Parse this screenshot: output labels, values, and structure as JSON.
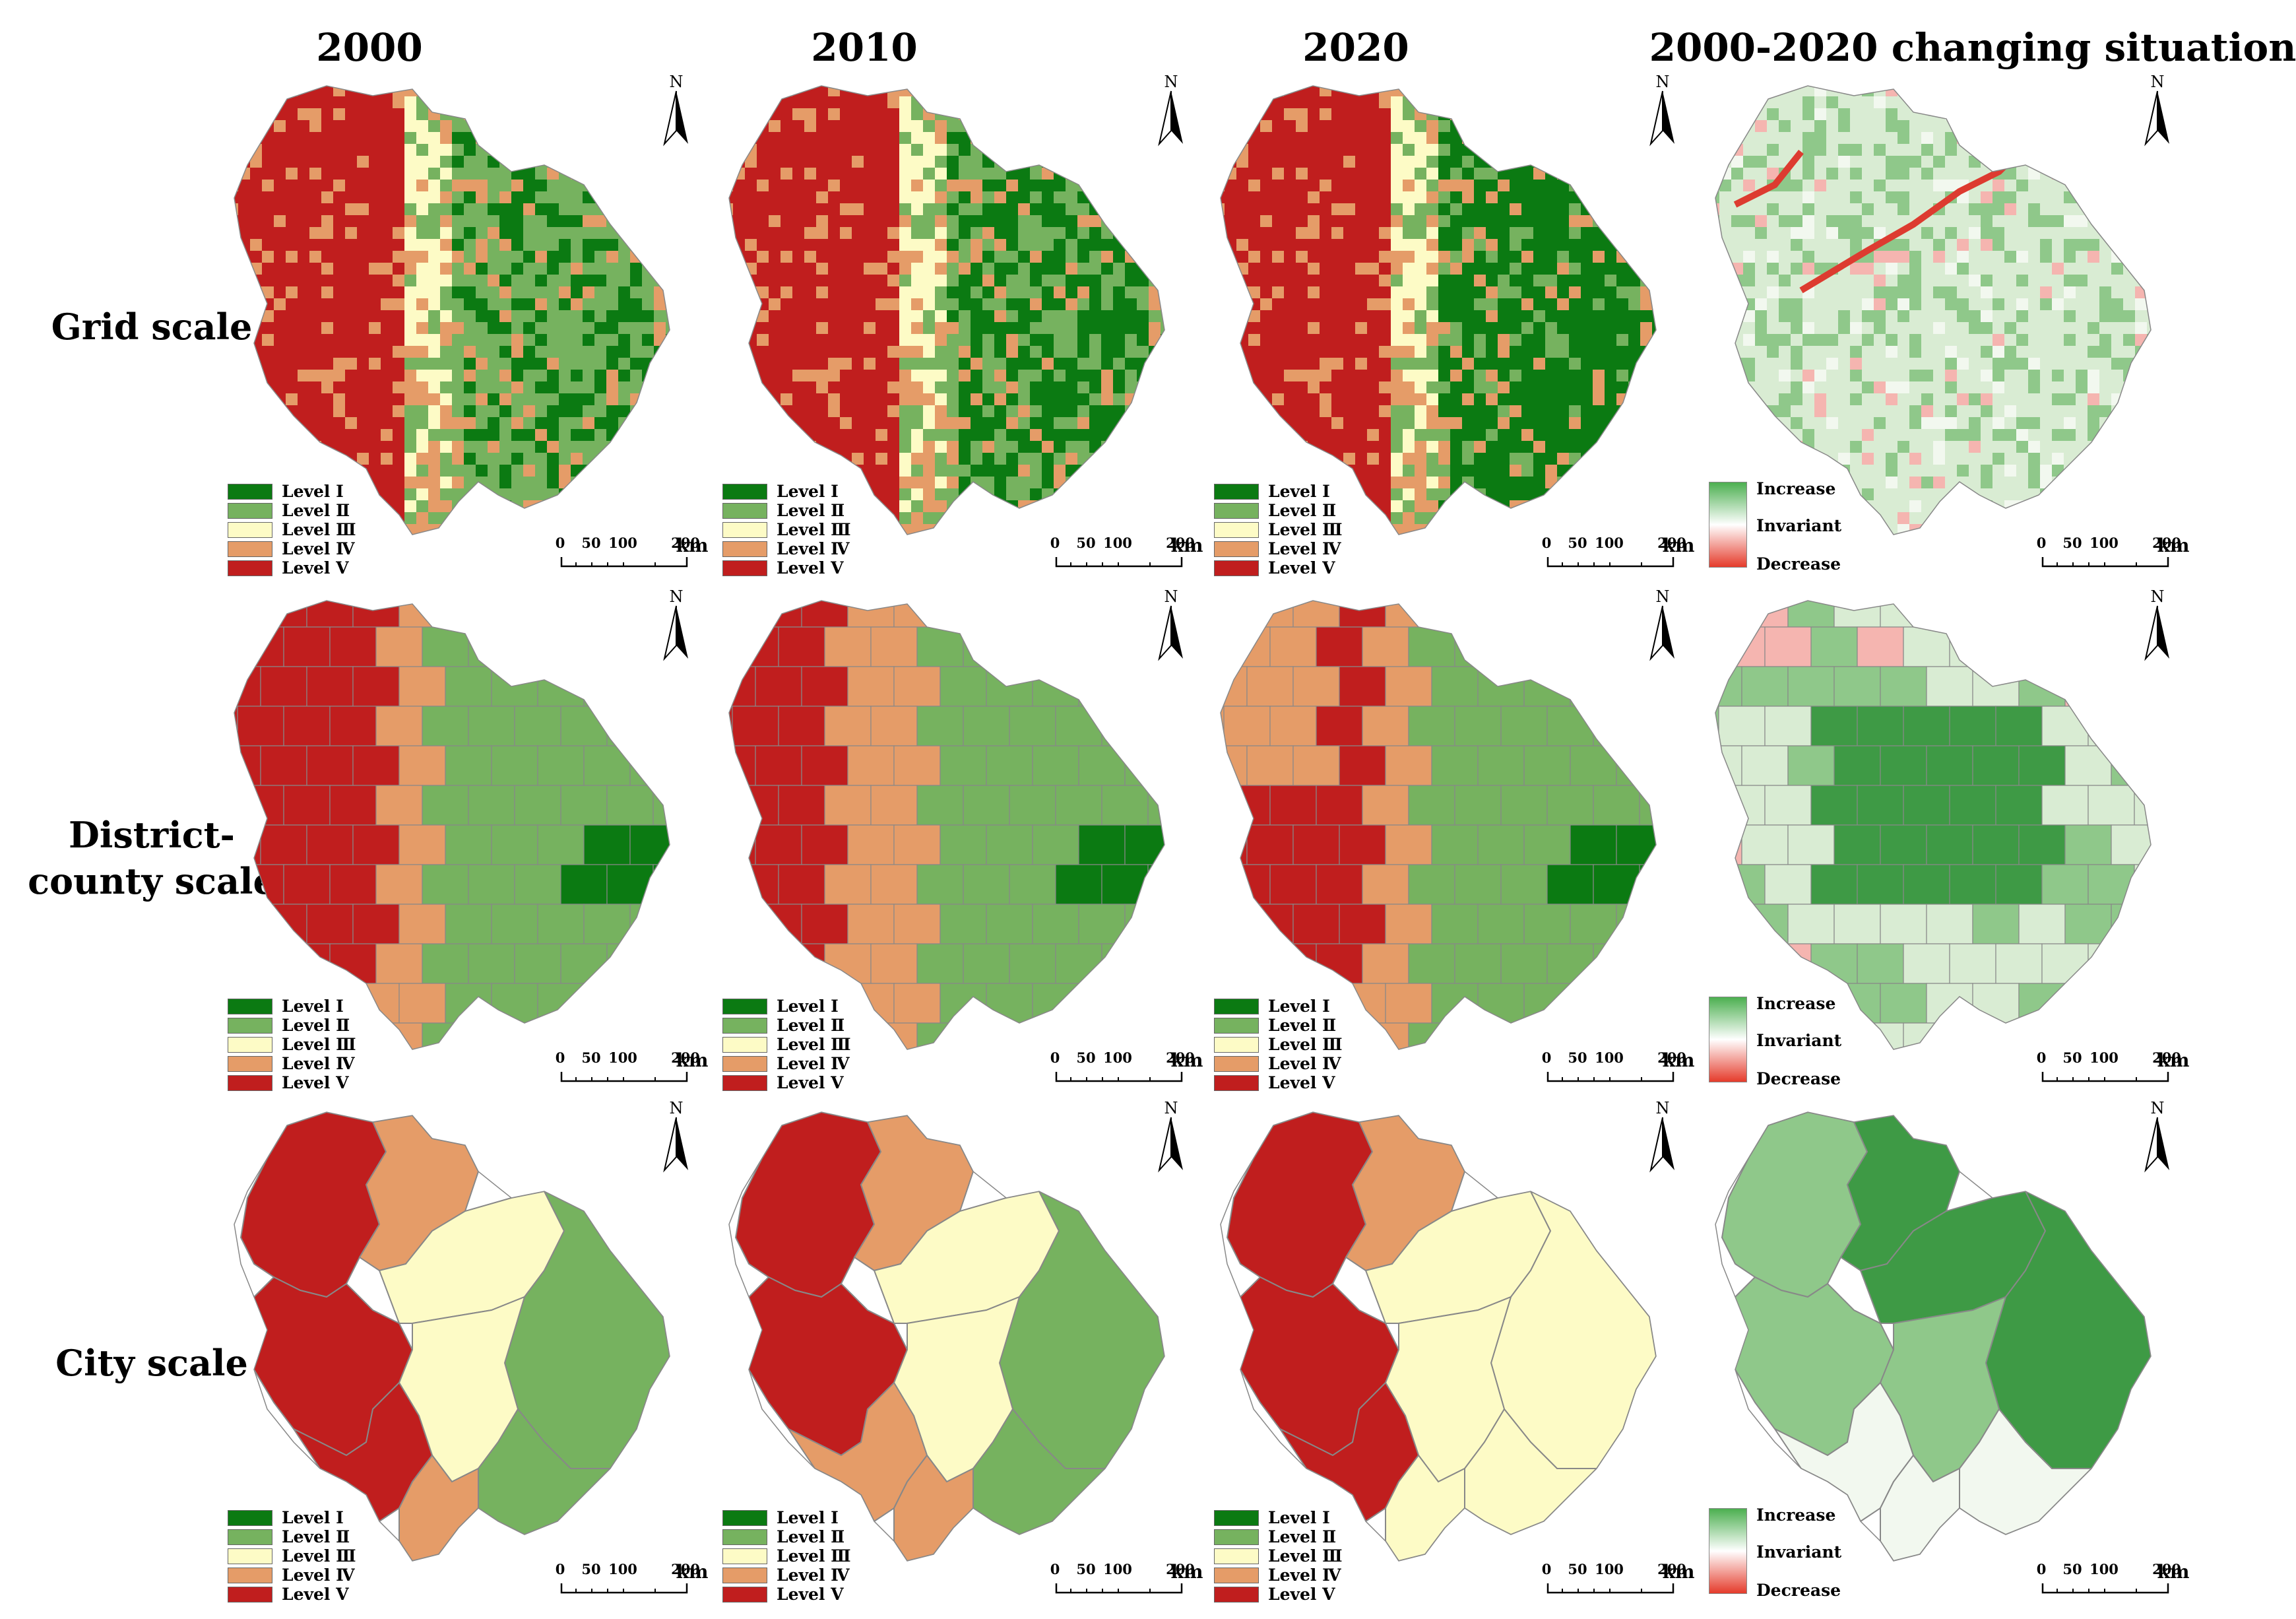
{
  "columns": [
    "2000",
    "2010",
    "2020",
    "2000-2020 changing situation"
  ],
  "rows": [
    "Grid scale",
    "District-county scale",
    "City scale"
  ],
  "legend": {
    "levels": [
      {
        "label": "Level Ⅰ",
        "color": "#0b7a12"
      },
      {
        "label": "Level Ⅱ",
        "color": "#76b25f"
      },
      {
        "label": "Level Ⅲ",
        "color": "#fdfbc6"
      },
      {
        "label": "Level Ⅳ",
        "color": "#e59c68"
      },
      {
        "label": "Level Ⅴ",
        "color": "#c01e1e"
      }
    ],
    "change": {
      "increase": "Increase",
      "invariant": "Invariant",
      "decrease": "Decrease"
    }
  },
  "scale_bar": {
    "ticks": [
      "0",
      "50",
      "100",
      "200"
    ],
    "unit": "km"
  },
  "north_label": "N",
  "colors": {
    "region_outline": "#888888",
    "change_strong": "#3e9a45",
    "change_mid": "#8fc88a",
    "change_light": "#d9ecd3",
    "change_neutral": "#f2f8ef",
    "change_decrease": "#f5b5b0",
    "change_decrease_strong": "#dd3b30"
  }
}
